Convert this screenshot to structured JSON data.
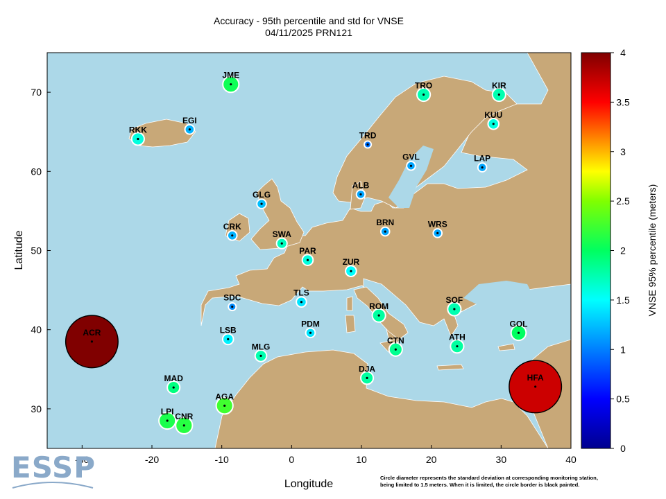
{
  "title": {
    "line1": "Accuracy - 95th percentile and std for VNSE",
    "line2": "04/11/2025 PRN121"
  },
  "axes": {
    "xlabel": "Longitude",
    "ylabel": "Latitude",
    "xticks": [
      "-30",
      "-20",
      "-10",
      "0",
      "10",
      "20",
      "30",
      "40"
    ],
    "yticks": [
      "30",
      "40",
      "50",
      "60",
      "70"
    ]
  },
  "colorbar": {
    "label": "VNSE 95% percentile (meters)",
    "ticks": [
      "0",
      "0.5",
      "1",
      "1.5",
      "2",
      "2.5",
      "3",
      "3.5",
      "4"
    ],
    "range": [
      0,
      4
    ]
  },
  "footnote": {
    "line1": "Circle diameter represents the standard deviation at corresponding monitoring station,",
    "line2": "being limited to 1.5 meters. When it is limited, the circle border is black painted."
  },
  "logo_text": "ESSP",
  "colors": {
    "sea": "#acd8e8",
    "land": "#c8a878",
    "border": "#ffffff"
  },
  "chart_data": {
    "type": "scatter",
    "xlim": [
      -35,
      40
    ],
    "ylim": [
      25,
      75
    ],
    "value_unit": "meters",
    "stations": [
      {
        "name": "JME",
        "lon": -8.7,
        "lat": 71.0,
        "vnse95": 2.05,
        "std": 0.46,
        "limited": false
      },
      {
        "name": "TRO",
        "lon": 18.9,
        "lat": 69.7,
        "vnse95": 1.75,
        "std": 0.38,
        "limited": false
      },
      {
        "name": "KIR",
        "lon": 29.7,
        "lat": 69.7,
        "vnse95": 1.75,
        "std": 0.38,
        "limited": false
      },
      {
        "name": "KUU",
        "lon": 28.9,
        "lat": 66.0,
        "vnse95": 1.6,
        "std": 0.31,
        "limited": false
      },
      {
        "name": "RKK",
        "lon": -22.0,
        "lat": 64.1,
        "vnse95": 1.6,
        "std": 0.36,
        "limited": false
      },
      {
        "name": "EGI",
        "lon": -14.6,
        "lat": 65.3,
        "vnse95": 1.2,
        "std": 0.27,
        "limited": false
      },
      {
        "name": "TRD",
        "lon": 10.9,
        "lat": 63.4,
        "vnse95": 0.95,
        "std": 0.2,
        "limited": false
      },
      {
        "name": "GVL",
        "lon": 17.1,
        "lat": 60.7,
        "vnse95": 1.15,
        "std": 0.25,
        "limited": false
      },
      {
        "name": "LAP",
        "lon": 27.3,
        "lat": 60.5,
        "vnse95": 1.15,
        "std": 0.25,
        "limited": false
      },
      {
        "name": "ALB",
        "lon": 9.9,
        "lat": 57.1,
        "vnse95": 1.15,
        "std": 0.25,
        "limited": false
      },
      {
        "name": "GLG",
        "lon": -4.3,
        "lat": 55.9,
        "vnse95": 1.25,
        "std": 0.27,
        "limited": false
      },
      {
        "name": "BRN",
        "lon": 13.4,
        "lat": 52.4,
        "vnse95": 1.15,
        "std": 0.25,
        "limited": false
      },
      {
        "name": "WRS",
        "lon": 20.9,
        "lat": 52.2,
        "vnse95": 1.15,
        "std": 0.25,
        "limited": false
      },
      {
        "name": "CRK",
        "lon": -8.5,
        "lat": 51.9,
        "vnse95": 1.2,
        "std": 0.27,
        "limited": false
      },
      {
        "name": "SWA",
        "lon": -1.4,
        "lat": 50.9,
        "vnse95": 1.7,
        "std": 0.3,
        "limited": false
      },
      {
        "name": "PAR",
        "lon": 2.3,
        "lat": 48.8,
        "vnse95": 1.6,
        "std": 0.31,
        "limited": false
      },
      {
        "name": "ZUR",
        "lon": 8.5,
        "lat": 47.4,
        "vnse95": 1.5,
        "std": 0.31,
        "limited": false
      },
      {
        "name": "TLS",
        "lon": 1.4,
        "lat": 43.5,
        "vnse95": 1.4,
        "std": 0.29,
        "limited": false
      },
      {
        "name": "SDC",
        "lon": -8.5,
        "lat": 42.9,
        "vnse95": 1.05,
        "std": 0.22,
        "limited": false
      },
      {
        "name": "ROM",
        "lon": 12.5,
        "lat": 41.8,
        "vnse95": 1.8,
        "std": 0.38,
        "limited": false
      },
      {
        "name": "SOF",
        "lon": 23.3,
        "lat": 42.6,
        "vnse95": 1.75,
        "std": 0.38,
        "limited": false
      },
      {
        "name": "PDM",
        "lon": 2.7,
        "lat": 39.6,
        "vnse95": 1.4,
        "std": 0.27,
        "limited": false
      },
      {
        "name": "LSB",
        "lon": -9.1,
        "lat": 38.8,
        "vnse95": 1.45,
        "std": 0.31,
        "limited": false
      },
      {
        "name": "ACR",
        "lon": -28.6,
        "lat": 38.5,
        "vnse95": 4.0,
        "std": 1.5,
        "limited": true
      },
      {
        "name": "GOL",
        "lon": 32.5,
        "lat": 39.6,
        "vnse95": 2.0,
        "std": 0.43,
        "limited": false
      },
      {
        "name": "MLG",
        "lon": -4.4,
        "lat": 36.7,
        "vnse95": 1.75,
        "std": 0.33,
        "limited": false
      },
      {
        "name": "CTN",
        "lon": 14.9,
        "lat": 37.5,
        "vnse95": 1.85,
        "std": 0.38,
        "limited": false
      },
      {
        "name": "ATH",
        "lon": 23.7,
        "lat": 37.9,
        "vnse95": 1.8,
        "std": 0.38,
        "limited": false
      },
      {
        "name": "DJA",
        "lon": 10.8,
        "lat": 33.9,
        "vnse95": 1.8,
        "std": 0.36,
        "limited": false
      },
      {
        "name": "HFA",
        "lon": 34.9,
        "lat": 32.8,
        "vnse95": 3.7,
        "std": 1.5,
        "limited": true
      },
      {
        "name": "MAD",
        "lon": -16.9,
        "lat": 32.7,
        "vnse95": 1.9,
        "std": 0.36,
        "limited": false
      },
      {
        "name": "AGA",
        "lon": -9.6,
        "lat": 30.4,
        "vnse95": 2.25,
        "std": 0.48,
        "limited": false
      },
      {
        "name": "LPI",
        "lon": -17.8,
        "lat": 28.5,
        "vnse95": 2.1,
        "std": 0.48,
        "limited": false
      },
      {
        "name": "CNR",
        "lon": -15.4,
        "lat": 27.9,
        "vnse95": 2.15,
        "std": 0.48,
        "limited": false
      }
    ]
  }
}
